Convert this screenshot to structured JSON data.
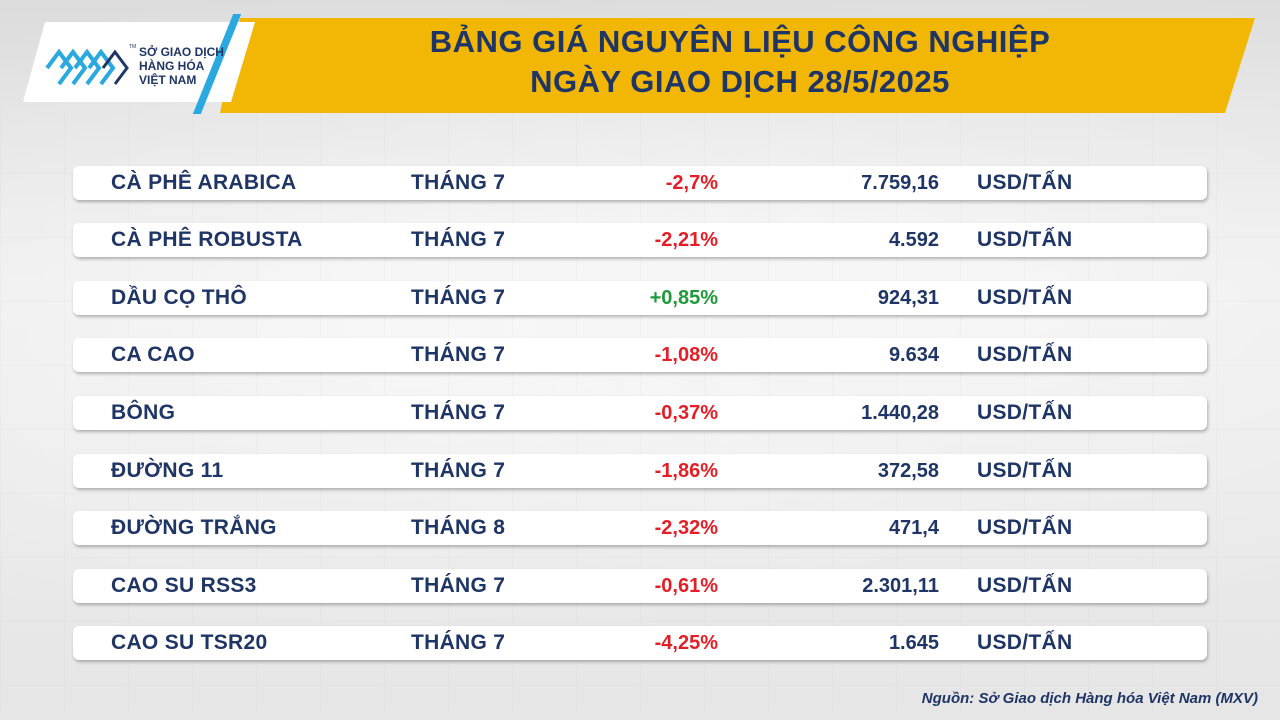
{
  "header": {
    "title_line1": "BẢNG GIÁ NGUYÊN LIỆU CÔNG NGHIỆP",
    "title_line2": "NGÀY GIAO DỊCH 28/5/2025",
    "band_color": "#f2b705",
    "title_color": "#1f3566"
  },
  "logo": {
    "line1": "SỞ GIAO DỊCH",
    "line2": "HÀNG HÓA",
    "line3": "VIỆT NAM",
    "tm": "TM",
    "icon": "mxv-logo-icon"
  },
  "colors": {
    "negative": "#e41e26",
    "positive": "#1f9a3a",
    "text": "#1f3566"
  },
  "rows": [
    {
      "name": "CÀ PHÊ ARABICA",
      "month": "THÁNG 7",
      "change": "-2,7%",
      "direction": "neg",
      "price": "7.759,16",
      "unit": "USD/TẤN"
    },
    {
      "name": "CÀ PHÊ ROBUSTA",
      "month": "THÁNG 7",
      "change": "-2,21%",
      "direction": "neg",
      "price": "4.592",
      "unit": "USD/TẤN"
    },
    {
      "name": "DẦU CỌ THÔ",
      "month": "THÁNG 7",
      "change": "+0,85%",
      "direction": "pos",
      "price": "924,31",
      "unit": "USD/TẤN"
    },
    {
      "name": "CA CAO",
      "month": "THÁNG 7",
      "change": "-1,08%",
      "direction": "neg",
      "price": "9.634",
      "unit": "USD/TẤN"
    },
    {
      "name": "BÔNG",
      "month": "THÁNG 7",
      "change": "-0,37%",
      "direction": "neg",
      "price": "1.440,28",
      "unit": "USD/TẤN"
    },
    {
      "name": "ĐƯỜNG 11",
      "month": "THÁNG 7",
      "change": "-1,86%",
      "direction": "neg",
      "price": "372,58",
      "unit": "USD/TẤN"
    },
    {
      "name": "ĐƯỜNG TRẮNG",
      "month": "THÁNG 8",
      "change": "-2,32%",
      "direction": "neg",
      "price": "471,4",
      "unit": "USD/TẤN"
    },
    {
      "name": "CAO SU RSS3",
      "month": "THÁNG 7",
      "change": "-0,61%",
      "direction": "neg",
      "price": "2.301,11",
      "unit": "USD/TẤN"
    },
    {
      "name": "CAO SU TSR20",
      "month": "THÁNG 7",
      "change": "-4,25%",
      "direction": "neg",
      "price": "1.645",
      "unit": "USD/TẤN"
    }
  ],
  "footer": {
    "source": "Nguồn: Sở Giao dịch Hàng hóa Việt Nam (MXV)"
  }
}
